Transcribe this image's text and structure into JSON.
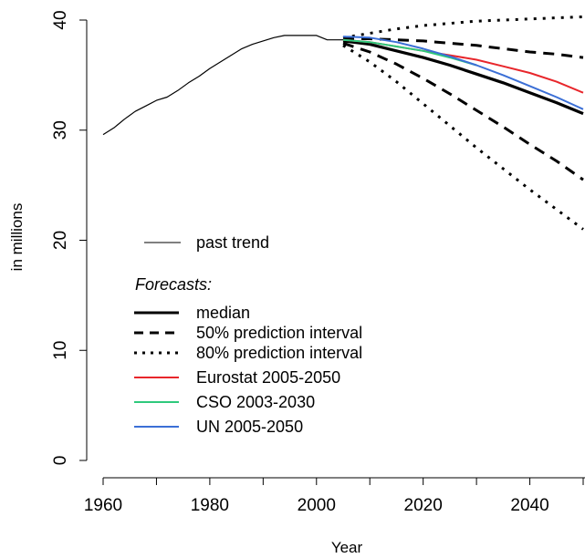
{
  "chart_data": {
    "type": "line",
    "xlabel": "Year",
    "ylabel": "in millions",
    "xlim": [
      1960,
      2050
    ],
    "ylim": [
      0,
      40
    ],
    "x_ticks": [
      1960,
      1980,
      2000,
      2020,
      2040
    ],
    "y_ticks": [
      0,
      10,
      20,
      30,
      40
    ],
    "grid": false,
    "legend": {
      "placement": "bottom-left",
      "past_label": "past trend",
      "forecast_title": "Forecasts:",
      "entries": [
        "median",
        "50% prediction interval",
        "80% prediction interval",
        "Eurostat 2005-2050",
        "CSO 2003-2030",
        "UN 2005-2050"
      ]
    },
    "colors": {
      "past": "#000000",
      "median": "#000000",
      "eurostat": "#e8262b",
      "cso": "#2ec97c",
      "un": "#3b6fd6"
    },
    "series": [
      {
        "name": "past trend",
        "style": "solid-thin",
        "x": [
          1960,
          1962,
          1964,
          1966,
          1968,
          1970,
          1972,
          1974,
          1976,
          1978,
          1980,
          1982,
          1984,
          1986,
          1988,
          1990,
          1992,
          1994,
          1996,
          1998,
          2000,
          2002,
          2004,
          2005
        ],
        "y": [
          29.6,
          30.2,
          31.0,
          31.7,
          32.2,
          32.7,
          33.0,
          33.6,
          34.3,
          34.9,
          35.6,
          36.2,
          36.8,
          37.4,
          37.8,
          38.1,
          38.4,
          38.6,
          38.6,
          38.6,
          38.6,
          38.2,
          38.2,
          38.2
        ]
      },
      {
        "name": "median",
        "style": "solid-thick",
        "x": [
          2005,
          2010,
          2015,
          2020,
          2025,
          2030,
          2035,
          2040,
          2045,
          2050
        ],
        "y": [
          38.1,
          37.8,
          37.2,
          36.6,
          35.9,
          35.1,
          34.3,
          33.4,
          32.5,
          31.5
        ]
      },
      {
        "name": "50% prediction interval",
        "style": "dashed",
        "x": [
          2005,
          2010,
          2015,
          2020,
          2025,
          2030,
          2035,
          2040,
          2045,
          2050
        ],
        "y": [
          38.3,
          38.3,
          38.2,
          38.1,
          37.9,
          37.7,
          37.4,
          37.1,
          36.9,
          36.6
        ]
      },
      {
        "name": "50% prediction interval",
        "style": "dashed",
        "x": [
          2005,
          2010,
          2015,
          2020,
          2025,
          2030,
          2035,
          2040,
          2045,
          2050
        ],
        "y": [
          37.9,
          37.1,
          36.0,
          34.7,
          33.3,
          31.8,
          30.3,
          28.7,
          27.2,
          25.5
        ]
      },
      {
        "name": "80% prediction interval",
        "style": "dotted",
        "x": [
          2005,
          2010,
          2015,
          2020,
          2025,
          2030,
          2035,
          2040,
          2045,
          2050
        ],
        "y": [
          38.4,
          38.8,
          39.2,
          39.5,
          39.7,
          39.9,
          40.0,
          40.1,
          40.2,
          40.3
        ]
      },
      {
        "name": "80% prediction interval",
        "style": "dotted",
        "x": [
          2005,
          2010,
          2015,
          2020,
          2025,
          2030,
          2035,
          2040,
          2045,
          2050
        ],
        "y": [
          37.7,
          36.2,
          34.4,
          32.4,
          30.4,
          28.4,
          26.5,
          24.6,
          22.8,
          21.0
        ]
      },
      {
        "name": "Eurostat 2005-2050",
        "style": "eurostat",
        "x": [
          2005,
          2010,
          2015,
          2020,
          2025,
          2030,
          2035,
          2040,
          2045,
          2050
        ],
        "y": [
          38.2,
          38.0,
          37.6,
          37.2,
          36.8,
          36.4,
          35.8,
          35.2,
          34.4,
          33.4
        ]
      },
      {
        "name": "CSO 2003-2030",
        "style": "cso",
        "x": [
          2005,
          2010,
          2015,
          2020,
          2025,
          2030
        ],
        "y": [
          38.2,
          38.0,
          37.6,
          37.2,
          36.6,
          35.9
        ]
      },
      {
        "name": "UN 2005-2050",
        "style": "un",
        "x": [
          2005,
          2010,
          2015,
          2020,
          2025,
          2030,
          2035,
          2040,
          2045,
          2050
        ],
        "y": [
          38.5,
          38.4,
          38.0,
          37.4,
          36.7,
          35.9,
          35.0,
          34.0,
          33.0,
          31.9
        ]
      }
    ]
  }
}
